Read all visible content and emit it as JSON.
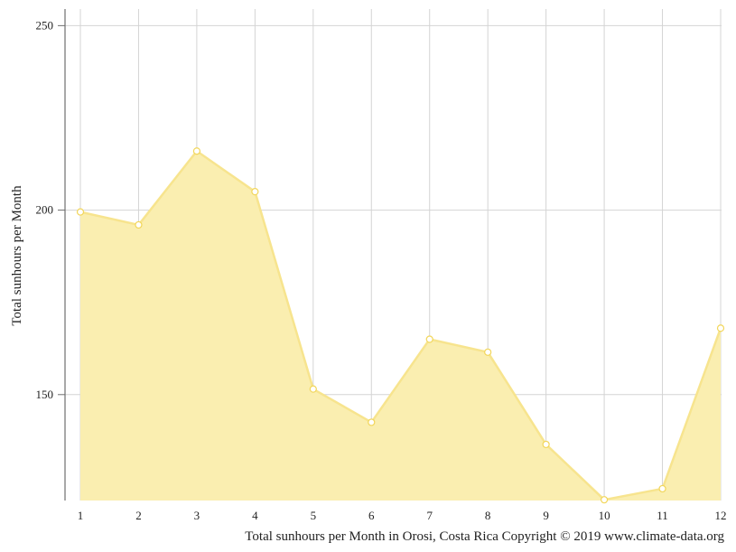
{
  "chart_data": {
    "type": "area",
    "x": [
      "1",
      "2",
      "3",
      "4",
      "5",
      "6",
      "7",
      "8",
      "9",
      "10",
      "11",
      "12"
    ],
    "series": [
      {
        "values": [
          199.5,
          196,
          216,
          205,
          151.5,
          142.5,
          165,
          161.5,
          136.5,
          121.5,
          124.5,
          168
        ]
      }
    ],
    "ylabel": "Total sunhours per Month",
    "xlabel": "",
    "caption": "Total sunhours per Month in Orosi, Costa Rica Copyright © 2019 www.climate-data.org",
    "yticks": [
      150,
      200,
      250
    ],
    "ylim": [
      121.3,
      254.5
    ],
    "grid": true,
    "colors": {
      "fill": "#faeeb0",
      "line": "#f7e48e",
      "marker_stroke": "#f2d65a",
      "grid": "#d4d4d4",
      "axis": "#6e6e6e"
    }
  }
}
